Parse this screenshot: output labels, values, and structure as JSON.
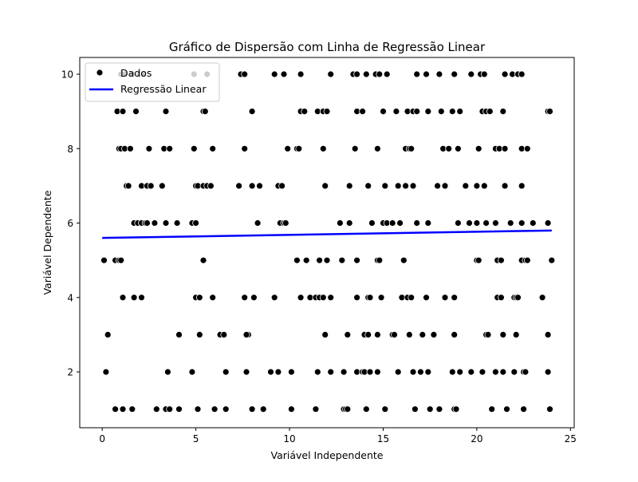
{
  "chart_data": {
    "type": "scatter",
    "title": "Gráfico de Dispersão com Linha de Regressão Linear",
    "xlabel": "Variável Independente",
    "ylabel": "Variável Dependente",
    "xlim": [
      -1.2,
      25.2
    ],
    "ylim": [
      0.5,
      10.45
    ],
    "xticks": [
      0,
      5,
      10,
      15,
      20,
      25
    ],
    "yticks": [
      2,
      4,
      6,
      8,
      10
    ],
    "grid": false,
    "legend": {
      "placement": "top-left",
      "entries": [
        "Dados",
        "Regressão Linear"
      ]
    },
    "colors": {
      "points": "#000000",
      "point_edge": "#ffffff",
      "regression": "#0000ff"
    },
    "series": [
      {
        "name": "Dados",
        "kind": "scatter",
        "points": [
          [
            1.0,
            10
          ],
          [
            1.2,
            10
          ],
          [
            1.6,
            10
          ],
          [
            2.0,
            10
          ],
          [
            2.2,
            10
          ],
          [
            4.9,
            10
          ],
          [
            5.6,
            10
          ],
          [
            7.4,
            10
          ],
          [
            7.6,
            10
          ],
          [
            9.2,
            10
          ],
          [
            9.7,
            10
          ],
          [
            10.6,
            10
          ],
          [
            12.2,
            10
          ],
          [
            13.4,
            10
          ],
          [
            13.6,
            10
          ],
          [
            14.1,
            10
          ],
          [
            14.6,
            10
          ],
          [
            14.8,
            10
          ],
          [
            15.2,
            10
          ],
          [
            16.8,
            10
          ],
          [
            17.3,
            10
          ],
          [
            18.0,
            10
          ],
          [
            18.8,
            10
          ],
          [
            19.7,
            10
          ],
          [
            20.2,
            10
          ],
          [
            20.4,
            10
          ],
          [
            21.5,
            10
          ],
          [
            21.9,
            10
          ],
          [
            22.2,
            10
          ],
          [
            22.4,
            10
          ],
          [
            0.8,
            9
          ],
          [
            1.1,
            9
          ],
          [
            1.8,
            9
          ],
          [
            3.4,
            9
          ],
          [
            5.4,
            9
          ],
          [
            5.5,
            9
          ],
          [
            8.0,
            9
          ],
          [
            10.6,
            9
          ],
          [
            10.8,
            9
          ],
          [
            11.5,
            9
          ],
          [
            11.8,
            9
          ],
          [
            12.0,
            9
          ],
          [
            13.6,
            9
          ],
          [
            13.9,
            9
          ],
          [
            15.0,
            9
          ],
          [
            15.7,
            9
          ],
          [
            16.3,
            9
          ],
          [
            16.6,
            9
          ],
          [
            16.8,
            9
          ],
          [
            17.4,
            9
          ],
          [
            18.1,
            9
          ],
          [
            18.7,
            9
          ],
          [
            19.1,
            9
          ],
          [
            20.3,
            9
          ],
          [
            20.5,
            9
          ],
          [
            20.7,
            9
          ],
          [
            21.4,
            9
          ],
          [
            23.8,
            9
          ],
          [
            23.9,
            9
          ],
          [
            0.9,
            8
          ],
          [
            1.0,
            8
          ],
          [
            1.2,
            8
          ],
          [
            1.5,
            8
          ],
          [
            2.5,
            8
          ],
          [
            3.3,
            8
          ],
          [
            3.6,
            8
          ],
          [
            4.9,
            8
          ],
          [
            5.9,
            8
          ],
          [
            7.6,
            8
          ],
          [
            9.9,
            8
          ],
          [
            10.4,
            8
          ],
          [
            10.5,
            8
          ],
          [
            11.8,
            8
          ],
          [
            13.5,
            8
          ],
          [
            14.7,
            8
          ],
          [
            16.2,
            8
          ],
          [
            16.4,
            8
          ],
          [
            16.5,
            8
          ],
          [
            18.2,
            8
          ],
          [
            18.5,
            8
          ],
          [
            19.0,
            8
          ],
          [
            20.1,
            8
          ],
          [
            21.0,
            8
          ],
          [
            21.2,
            8
          ],
          [
            21.5,
            8
          ],
          [
            22.4,
            8
          ],
          [
            22.7,
            8
          ],
          [
            1.3,
            7
          ],
          [
            1.4,
            7
          ],
          [
            2.1,
            7
          ],
          [
            2.4,
            7
          ],
          [
            2.6,
            7
          ],
          [
            3.2,
            7
          ],
          [
            5.0,
            7
          ],
          [
            5.1,
            7
          ],
          [
            5.4,
            7
          ],
          [
            5.6,
            7
          ],
          [
            5.8,
            7
          ],
          [
            7.3,
            7
          ],
          [
            8.0,
            7
          ],
          [
            8.4,
            7
          ],
          [
            9.4,
            7
          ],
          [
            9.6,
            7
          ],
          [
            11.9,
            7
          ],
          [
            13.2,
            7
          ],
          [
            14.2,
            7
          ],
          [
            15.1,
            7
          ],
          [
            15.8,
            7
          ],
          [
            16.2,
            7
          ],
          [
            16.6,
            7
          ],
          [
            17.9,
            7
          ],
          [
            18.3,
            7
          ],
          [
            19.4,
            7
          ],
          [
            20.0,
            7
          ],
          [
            20.4,
            7
          ],
          [
            21.5,
            7
          ],
          [
            22.4,
            7
          ],
          [
            1.7,
            6
          ],
          [
            1.9,
            6
          ],
          [
            2.1,
            6
          ],
          [
            2.3,
            6
          ],
          [
            2.4,
            6
          ],
          [
            2.8,
            6
          ],
          [
            3.4,
            6
          ],
          [
            4.0,
            6
          ],
          [
            4.8,
            6
          ],
          [
            5.0,
            6
          ],
          [
            8.3,
            6
          ],
          [
            9.5,
            6
          ],
          [
            9.7,
            6
          ],
          [
            9.8,
            6
          ],
          [
            12.7,
            6
          ],
          [
            13.2,
            6
          ],
          [
            14.4,
            6
          ],
          [
            15.0,
            6
          ],
          [
            15.2,
            6
          ],
          [
            15.5,
            6
          ],
          [
            15.9,
            6
          ],
          [
            16.8,
            6
          ],
          [
            17.4,
            6
          ],
          [
            19.0,
            6
          ],
          [
            19.6,
            6
          ],
          [
            20.0,
            6
          ],
          [
            20.5,
            6
          ],
          [
            21.0,
            6
          ],
          [
            21.8,
            6
          ],
          [
            22.4,
            6
          ],
          [
            23.0,
            6
          ],
          [
            23.8,
            6
          ],
          [
            0.1,
            5
          ],
          [
            0.7,
            5
          ],
          [
            0.9,
            5
          ],
          [
            1.0,
            5
          ],
          [
            5.4,
            5
          ],
          [
            10.4,
            5
          ],
          [
            10.9,
            5
          ],
          [
            11.6,
            5
          ],
          [
            12.0,
            5
          ],
          [
            12.8,
            5
          ],
          [
            13.6,
            5
          ],
          [
            14.7,
            5
          ],
          [
            14.8,
            5
          ],
          [
            16.1,
            5
          ],
          [
            20.0,
            5
          ],
          [
            20.1,
            5
          ],
          [
            21.1,
            5
          ],
          [
            21.3,
            5
          ],
          [
            22.4,
            5
          ],
          [
            22.6,
            5
          ],
          [
            22.7,
            5
          ],
          [
            24.0,
            5
          ],
          [
            1.1,
            4
          ],
          [
            1.7,
            4
          ],
          [
            2.1,
            4
          ],
          [
            5.0,
            4
          ],
          [
            5.2,
            4
          ],
          [
            5.9,
            4
          ],
          [
            7.6,
            4
          ],
          [
            8.1,
            4
          ],
          [
            9.2,
            4
          ],
          [
            10.6,
            4
          ],
          [
            11.1,
            4
          ],
          [
            11.4,
            4
          ],
          [
            11.6,
            4
          ],
          [
            11.8,
            4
          ],
          [
            12.2,
            4
          ],
          [
            13.6,
            4
          ],
          [
            14.2,
            4
          ],
          [
            14.3,
            4
          ],
          [
            14.9,
            4
          ],
          [
            16.0,
            4
          ],
          [
            16.3,
            4
          ],
          [
            16.5,
            4
          ],
          [
            17.3,
            4
          ],
          [
            18.3,
            4
          ],
          [
            18.8,
            4
          ],
          [
            21.1,
            4
          ],
          [
            21.3,
            4
          ],
          [
            22.0,
            4
          ],
          [
            22.1,
            4
          ],
          [
            22.2,
            4
          ],
          [
            23.5,
            4
          ],
          [
            0.3,
            3
          ],
          [
            4.1,
            3
          ],
          [
            5.2,
            3
          ],
          [
            6.3,
            3
          ],
          [
            6.5,
            3
          ],
          [
            7.8,
            3
          ],
          [
            7.7,
            3
          ],
          [
            11.9,
            3
          ],
          [
            13.1,
            3
          ],
          [
            14.0,
            3
          ],
          [
            14.2,
            3
          ],
          [
            14.7,
            3
          ],
          [
            15.5,
            3
          ],
          [
            15.6,
            3
          ],
          [
            16.4,
            3
          ],
          [
            17.1,
            3
          ],
          [
            17.7,
            3
          ],
          [
            18.8,
            3
          ],
          [
            20.5,
            3
          ],
          [
            20.6,
            3
          ],
          [
            21.4,
            3
          ],
          [
            22.1,
            3
          ],
          [
            23.8,
            3
          ],
          [
            0.2,
            2
          ],
          [
            3.5,
            2
          ],
          [
            4.8,
            2
          ],
          [
            6.6,
            2
          ],
          [
            7.7,
            2
          ],
          [
            9.0,
            2
          ],
          [
            9.4,
            2
          ],
          [
            10.1,
            2
          ],
          [
            11.5,
            2
          ],
          [
            12.2,
            2
          ],
          [
            12.9,
            2
          ],
          [
            13.6,
            2
          ],
          [
            13.9,
            2
          ],
          [
            14.0,
            2
          ],
          [
            14.3,
            2
          ],
          [
            14.7,
            2
          ],
          [
            15.8,
            2
          ],
          [
            16.6,
            2
          ],
          [
            17.0,
            2
          ],
          [
            17.4,
            2
          ],
          [
            18.7,
            2
          ],
          [
            19.1,
            2
          ],
          [
            19.7,
            2
          ],
          [
            20.3,
            2
          ],
          [
            21.0,
            2
          ],
          [
            21.4,
            2
          ],
          [
            22.0,
            2
          ],
          [
            22.5,
            2
          ],
          [
            22.6,
            2
          ],
          [
            23.8,
            2
          ],
          [
            0.7,
            1
          ],
          [
            1.1,
            1
          ],
          [
            1.6,
            1
          ],
          [
            2.9,
            1
          ],
          [
            3.4,
            1
          ],
          [
            3.6,
            1
          ],
          [
            4.1,
            1
          ],
          [
            5.1,
            1
          ],
          [
            6.0,
            1
          ],
          [
            6.6,
            1
          ],
          [
            8.0,
            1
          ],
          [
            8.6,
            1
          ],
          [
            10.1,
            1
          ],
          [
            11.4,
            1
          ],
          [
            12.9,
            1
          ],
          [
            13.0,
            1
          ],
          [
            13.1,
            1
          ],
          [
            14.1,
            1
          ],
          [
            15.1,
            1
          ],
          [
            16.7,
            1
          ],
          [
            17.5,
            1
          ],
          [
            18.0,
            1
          ],
          [
            18.8,
            1
          ],
          [
            18.9,
            1
          ],
          [
            20.8,
            1
          ],
          [
            21.6,
            1
          ],
          [
            22.5,
            1
          ],
          [
            23.9,
            1
          ]
        ]
      },
      {
        "name": "Regressão Linear",
        "kind": "line",
        "points": [
          [
            0,
            5.6
          ],
          [
            24,
            5.8
          ]
        ]
      }
    ]
  }
}
